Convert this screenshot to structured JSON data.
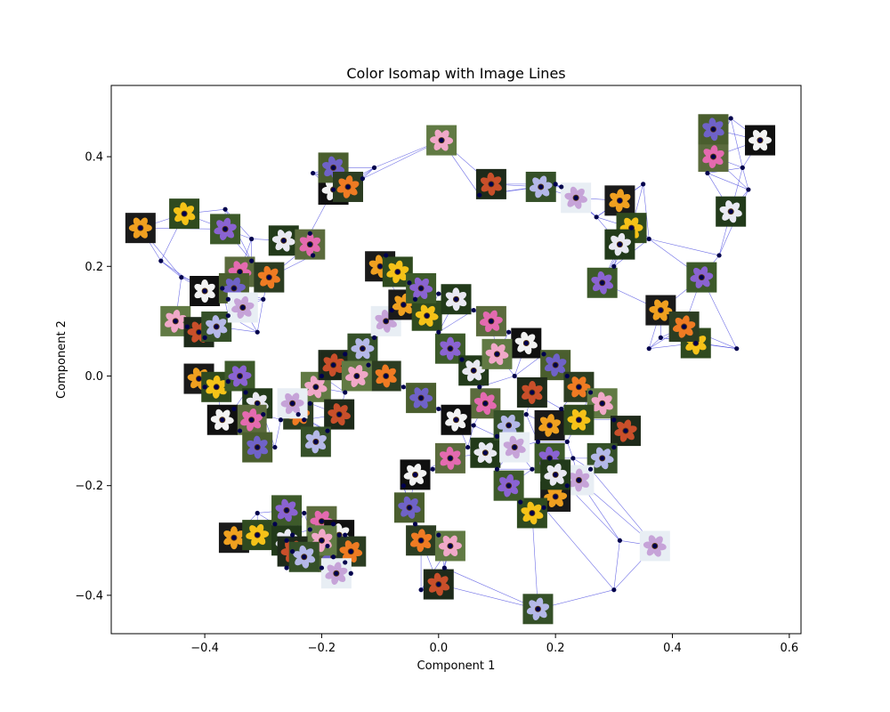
{
  "chart_data": {
    "type": "scatter",
    "title": "Color Isomap with Image Lines",
    "xlabel": "Component 1",
    "ylabel": "Component 2",
    "xlim": [
      -0.56,
      0.62
    ],
    "ylim": [
      -0.47,
      0.53
    ],
    "xticks": [
      -0.4,
      -0.2,
      0.0,
      0.2,
      0.4,
      0.6
    ],
    "yticks": [
      -0.4,
      -0.2,
      0.0,
      0.2,
      0.4
    ],
    "xtick_labels": [
      "−0.4",
      "−0.2",
      "0.0",
      "0.2",
      "0.4",
      "0.6"
    ],
    "ytick_labels": [
      "−0.4",
      "−0.2",
      "0.0",
      "0.2",
      "0.4"
    ],
    "grid": false,
    "legend": "none",
    "point_color": "#00004d",
    "edge_color": "#3f3fdd",
    "points": [
      [
        -0.51,
        0.27
      ],
      [
        -0.475,
        0.21
      ],
      [
        -0.435,
        0.296
      ],
      [
        -0.365,
        0.304
      ],
      [
        -0.365,
        0.268
      ],
      [
        -0.32,
        0.25
      ],
      [
        -0.265,
        0.247
      ],
      [
        -0.22,
        0.26
      ],
      [
        -0.22,
        0.24
      ],
      [
        -0.215,
        0.22
      ],
      [
        -0.18,
        0.34
      ],
      [
        -0.215,
        0.37
      ],
      [
        -0.18,
        0.38
      ],
      [
        -0.13,
        0.36
      ],
      [
        -0.155,
        0.345
      ],
      [
        -0.11,
        0.38
      ],
      [
        0.005,
        0.43
      ],
      [
        0.07,
        0.33
      ],
      [
        0.09,
        0.35
      ],
      [
        0.2,
        0.35
      ],
      [
        0.175,
        0.345
      ],
      [
        0.21,
        0.345
      ],
      [
        0.235,
        0.325
      ],
      [
        0.27,
        0.29
      ],
      [
        0.31,
        0.32
      ],
      [
        0.35,
        0.35
      ],
      [
        0.33,
        0.27
      ],
      [
        0.36,
        0.25
      ],
      [
        0.28,
        0.17
      ],
      [
        0.3,
        0.2
      ],
      [
        0.31,
        0.24
      ],
      [
        -0.32,
        0.21
      ],
      [
        -0.34,
        0.19
      ],
      [
        -0.44,
        0.18
      ],
      [
        -0.4,
        0.155
      ],
      [
        -0.37,
        0.16
      ],
      [
        -0.35,
        0.16
      ],
      [
        -0.36,
        0.14
      ],
      [
        -0.29,
        0.18
      ],
      [
        -0.3,
        0.14
      ],
      [
        -0.45,
        0.1
      ],
      [
        -0.43,
        0.09
      ],
      [
        -0.41,
        0.08
      ],
      [
        -0.4,
        0.07
      ],
      [
        -0.38,
        0.09
      ],
      [
        -0.36,
        0.11
      ],
      [
        -0.335,
        0.125
      ],
      [
        -0.31,
        0.08
      ],
      [
        -0.41,
        -0.005
      ],
      [
        -0.4,
        -0.02
      ],
      [
        -0.38,
        -0.02
      ],
      [
        -0.36,
        -0.01
      ],
      [
        -0.34,
        0.0
      ],
      [
        -0.33,
        -0.03
      ],
      [
        -0.31,
        -0.05
      ],
      [
        -0.3,
        -0.07
      ],
      [
        -0.32,
        -0.08
      ],
      [
        -0.35,
        -0.06
      ],
      [
        -0.37,
        -0.08
      ],
      [
        -0.34,
        -0.1
      ],
      [
        -0.31,
        -0.13
      ],
      [
        -0.28,
        -0.13
      ],
      [
        -0.24,
        -0.07
      ],
      [
        -0.22,
        -0.05
      ],
      [
        -0.21,
        -0.02
      ],
      [
        -0.2,
        0.0
      ],
      [
        -0.18,
        0.02
      ],
      [
        -0.16,
        0.04
      ],
      [
        -0.13,
        0.05
      ],
      [
        -0.11,
        0.07
      ],
      [
        -0.09,
        0.1
      ],
      [
        -0.08,
        0.12
      ],
      [
        -0.06,
        0.13
      ],
      [
        -0.04,
        0.14
      ],
      [
        -0.02,
        0.11
      ],
      [
        0.0,
        0.08
      ],
      [
        0.02,
        0.05
      ],
      [
        0.04,
        0.03
      ],
      [
        0.06,
        0.01
      ],
      [
        0.07,
        -0.02
      ],
      [
        0.08,
        -0.05
      ],
      [
        0.06,
        -0.09
      ],
      [
        0.03,
        -0.08
      ],
      [
        0.0,
        -0.06
      ],
      [
        -0.03,
        -0.04
      ],
      [
        -0.06,
        -0.02
      ],
      [
        -0.09,
        0.0
      ],
      [
        -0.12,
        0.02
      ],
      [
        -0.14,
        0.0
      ],
      [
        -0.16,
        -0.03
      ],
      [
        -0.17,
        -0.07
      ],
      [
        -0.19,
        -0.1
      ],
      [
        -0.21,
        -0.12
      ],
      [
        -0.23,
        -0.08
      ],
      [
        -0.25,
        -0.05
      ],
      [
        -0.27,
        -0.08
      ],
      [
        -0.1,
        0.2
      ],
      [
        -0.09,
        0.22
      ],
      [
        -0.07,
        0.19
      ],
      [
        -0.05,
        0.17
      ],
      [
        -0.03,
        0.16
      ],
      [
        0.0,
        0.15
      ],
      [
        0.03,
        0.14
      ],
      [
        0.06,
        0.12
      ],
      [
        0.09,
        0.1
      ],
      [
        0.12,
        0.08
      ],
      [
        0.15,
        0.06
      ],
      [
        0.18,
        0.04
      ],
      [
        0.2,
        0.02
      ],
      [
        0.22,
        0.0
      ],
      [
        0.24,
        -0.02
      ],
      [
        0.26,
        -0.03
      ],
      [
        0.28,
        -0.05
      ],
      [
        0.3,
        -0.08
      ],
      [
        0.32,
        -0.1
      ],
      [
        0.3,
        -0.13
      ],
      [
        0.28,
        -0.15
      ],
      [
        0.26,
        -0.17
      ],
      [
        0.24,
        -0.19
      ],
      [
        0.22,
        -0.2
      ],
      [
        0.2,
        -0.22
      ],
      [
        0.18,
        -0.24
      ],
      [
        0.16,
        -0.25
      ],
      [
        0.14,
        -0.23
      ],
      [
        0.12,
        -0.2
      ],
      [
        0.1,
        -0.17
      ],
      [
        0.08,
        -0.14
      ],
      [
        0.05,
        -0.13
      ],
      [
        0.02,
        -0.15
      ],
      [
        -0.01,
        -0.17
      ],
      [
        -0.04,
        -0.18
      ],
      [
        -0.06,
        -0.2
      ],
      [
        -0.05,
        -0.24
      ],
      [
        -0.04,
        -0.27
      ],
      [
        -0.03,
        -0.3
      ],
      [
        0.0,
        -0.29
      ],
      [
        0.02,
        -0.31
      ],
      [
        0.01,
        -0.35
      ],
      [
        0.0,
        -0.38
      ],
      [
        -0.03,
        -0.39
      ],
      [
        0.17,
        -0.425
      ],
      [
        0.3,
        -0.39
      ],
      [
        0.37,
        -0.31
      ],
      [
        0.31,
        -0.3
      ],
      [
        -0.35,
        -0.295
      ],
      [
        -0.31,
        -0.25
      ],
      [
        -0.31,
        -0.29
      ],
      [
        -0.28,
        -0.27
      ],
      [
        -0.26,
        -0.245
      ],
      [
        -0.25,
        -0.29
      ],
      [
        -0.26,
        -0.3
      ],
      [
        -0.23,
        -0.25
      ],
      [
        -0.2,
        -0.265
      ],
      [
        -0.18,
        -0.27
      ],
      [
        -0.17,
        -0.29
      ],
      [
        -0.19,
        -0.31
      ],
      [
        -0.18,
        -0.33
      ],
      [
        -0.16,
        -0.34
      ],
      [
        -0.15,
        -0.32
      ],
      [
        -0.16,
        -0.29
      ],
      [
        -0.2,
        -0.3
      ],
      [
        -0.22,
        -0.28
      ],
      [
        -0.25,
        -0.32
      ],
      [
        -0.26,
        -0.35
      ],
      [
        -0.23,
        -0.33
      ],
      [
        -0.2,
        -0.35
      ],
      [
        -0.175,
        -0.36
      ],
      [
        -0.15,
        -0.36
      ],
      [
        0.38,
        0.12
      ],
      [
        0.38,
        0.07
      ],
      [
        0.44,
        0.06
      ],
      [
        0.51,
        0.05
      ],
      [
        0.45,
        0.18
      ],
      [
        0.48,
        0.22
      ],
      [
        0.5,
        0.3
      ],
      [
        0.46,
        0.37
      ],
      [
        0.47,
        0.4
      ],
      [
        0.52,
        0.38
      ],
      [
        0.55,
        0.43
      ],
      [
        0.5,
        0.47
      ],
      [
        0.47,
        0.45
      ],
      [
        0.53,
        0.34
      ],
      [
        0.42,
        0.09
      ],
      [
        0.36,
        0.05
      ],
      [
        0.1,
        0.04
      ],
      [
        0.13,
        0.0
      ],
      [
        0.16,
        -0.03
      ],
      [
        0.15,
        -0.07
      ],
      [
        0.12,
        -0.09
      ],
      [
        0.1,
        -0.11
      ],
      [
        0.13,
        -0.13
      ],
      [
        0.17,
        -0.12
      ],
      [
        0.19,
        -0.09
      ],
      [
        0.21,
        -0.06
      ],
      [
        0.24,
        -0.08
      ],
      [
        0.22,
        -0.12
      ],
      [
        0.19,
        -0.15
      ],
      [
        0.16,
        -0.17
      ],
      [
        0.2,
        -0.18
      ],
      [
        0.23,
        -0.15
      ]
    ]
  }
}
